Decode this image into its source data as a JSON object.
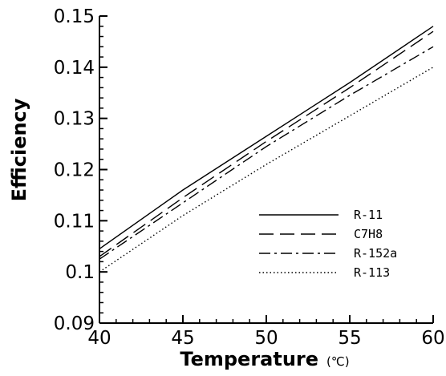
{
  "chart_data": {
    "type": "line",
    "title": "",
    "xlabel": "Temperature",
    "xlabel_unit": "(℃)",
    "ylabel": "Efficiency",
    "xlim": [
      40,
      60
    ],
    "ylim": [
      0.09,
      0.15
    ],
    "x_ticks": [
      40,
      45,
      50,
      55,
      60
    ],
    "y_ticks": [
      0.09,
      0.1,
      0.11,
      0.12,
      0.13,
      0.14,
      0.15
    ],
    "x_tick_labels": [
      "40",
      "45",
      "50",
      "55",
      "60"
    ],
    "y_tick_labels": [
      "0.09",
      "0.1",
      "0.11",
      "0.12",
      "0.13",
      "0.14",
      "0.15"
    ],
    "grid": false,
    "legend_position": "lower-right",
    "x": [
      40,
      45,
      50,
      55,
      60
    ],
    "series": [
      {
        "name": "R-11",
        "dash": "solid",
        "values": [
          0.1045,
          0.116,
          0.1265,
          0.137,
          0.148
        ]
      },
      {
        "name": "C7H8",
        "dash": "dashed",
        "values": [
          0.103,
          0.1145,
          0.1255,
          0.136,
          0.147
        ]
      },
      {
        "name": "R-152a",
        "dash": "dashdot",
        "values": [
          0.1025,
          0.1135,
          0.1245,
          0.1345,
          0.144
        ]
      },
      {
        "name": "R-113",
        "dash": "dotted",
        "values": [
          0.1,
          0.111,
          0.121,
          0.1305,
          0.14
        ]
      }
    ]
  }
}
